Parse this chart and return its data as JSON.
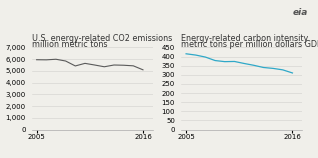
{
  "left_title1": "U.S. energy-related CO2 emissions",
  "left_title2": "million metric tons",
  "right_title1": "Energy-related carbon intensity",
  "right_title2": "metric tons per million dollars GDP",
  "left_years": [
    2005,
    2006,
    2007,
    2008,
    2009,
    2010,
    2011,
    2012,
    2013,
    2014,
    2015,
    2016
  ],
  "left_values": [
    5950,
    5940,
    5990,
    5840,
    5420,
    5640,
    5500,
    5350,
    5500,
    5480,
    5430,
    5090
  ],
  "right_years": [
    2005,
    2006,
    2007,
    2008,
    2009,
    2010,
    2011,
    2012,
    2013,
    2014,
    2015,
    2016
  ],
  "right_values": [
    415,
    408,
    397,
    378,
    372,
    373,
    362,
    352,
    340,
    335,
    327,
    310
  ],
  "left_ylim": [
    0,
    7000
  ],
  "left_yticks": [
    0,
    1000,
    2000,
    3000,
    4000,
    5000,
    6000,
    7000
  ],
  "right_ylim": [
    0,
    450
  ],
  "right_yticks": [
    0,
    50,
    100,
    150,
    200,
    250,
    300,
    350,
    400,
    450
  ],
  "left_line_color": "#5a5a5a",
  "right_line_color": "#2fa8c8",
  "bg_color": "#f0efea",
  "grid_color": "#d0d0cc",
  "spine_color": "#aaaaaa",
  "text_color": "#333333",
  "xticks": [
    2005,
    2016
  ],
  "title_fontsize": 5.8,
  "tick_fontsize": 5.0
}
